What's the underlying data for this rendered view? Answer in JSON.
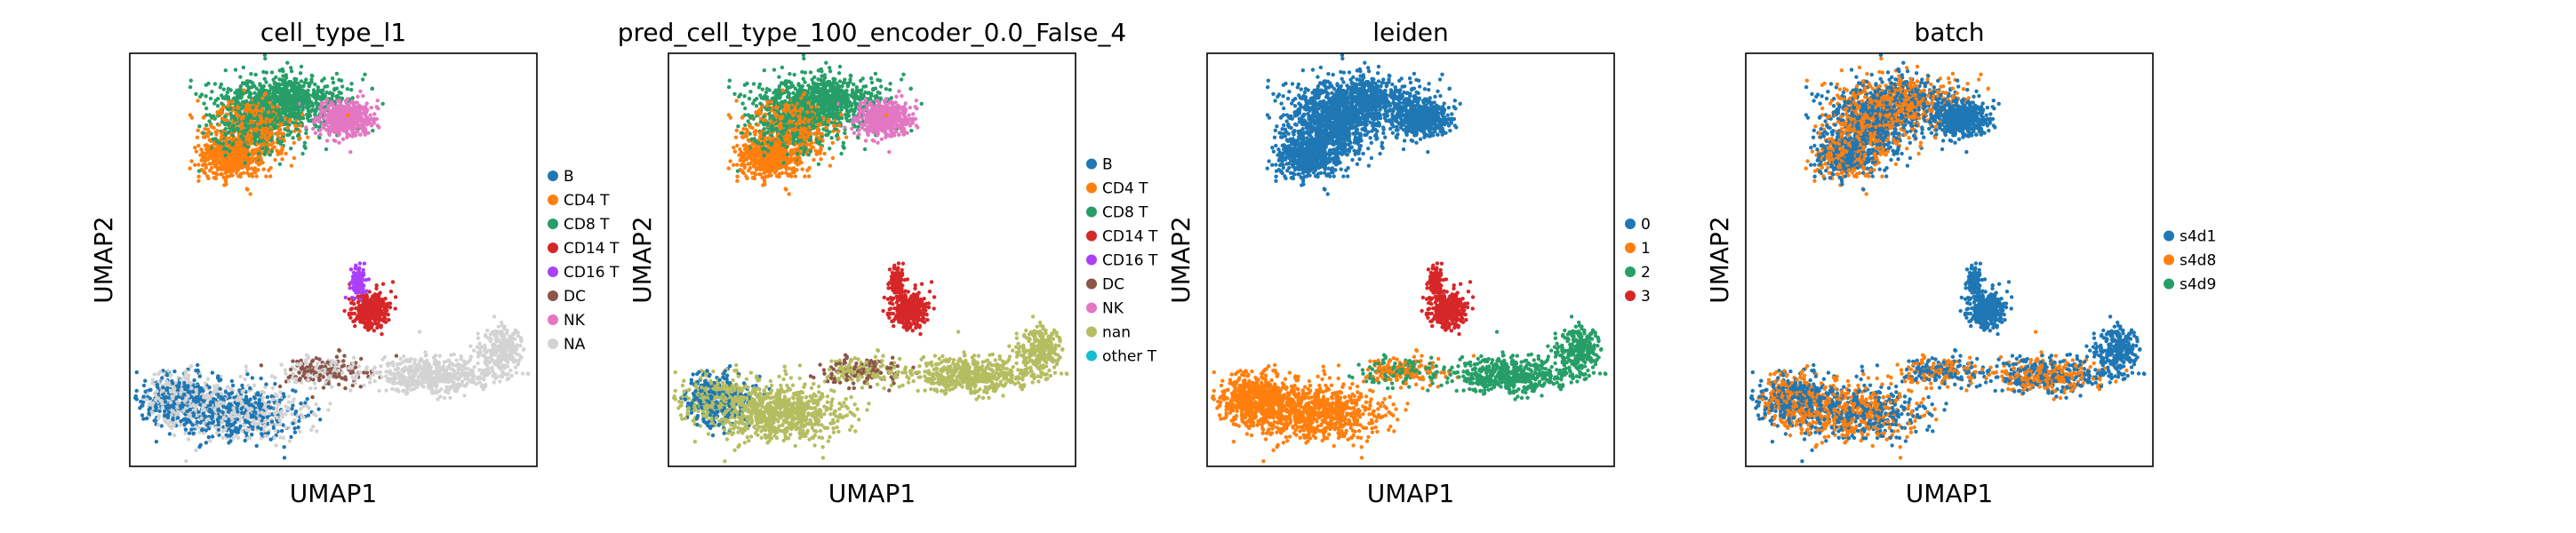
{
  "chart_data": [
    {
      "type": "scatter",
      "title": "cell_type_l1",
      "xlabel": "UMAP1",
      "ylabel": "UMAP2",
      "grid": false,
      "legend_position": "right",
      "legend": [
        {
          "label": "B",
          "color": "#1f77b4"
        },
        {
          "label": "CD4 T",
          "color": "#ff7f0e"
        },
        {
          "label": "CD8 T",
          "color": "#279e68"
        },
        {
          "label": "CD14 T",
          "color": "#d62728"
        },
        {
          "label": "CD16 T",
          "color": "#aa40fc"
        },
        {
          "label": "DC",
          "color": "#8c564b"
        },
        {
          "label": "NK",
          "color": "#e377c2"
        },
        {
          "label": "NA",
          "color": "#d3d3d3"
        }
      ]
    },
    {
      "type": "scatter",
      "title": "pred_cell_type_100_encoder_0.0_False_4",
      "xlabel": "UMAP1",
      "ylabel": "UMAP2",
      "grid": false,
      "legend_position": "right",
      "legend": [
        {
          "label": "B",
          "color": "#1f77b4"
        },
        {
          "label": "CD4 T",
          "color": "#ff7f0e"
        },
        {
          "label": "CD8 T",
          "color": "#279e68"
        },
        {
          "label": "CD14 T",
          "color": "#d62728"
        },
        {
          "label": "CD16 T",
          "color": "#aa40fc"
        },
        {
          "label": "DC",
          "color": "#8c564b"
        },
        {
          "label": "NK",
          "color": "#e377c2"
        },
        {
          "label": "nan",
          "color": "#b5bd61"
        },
        {
          "label": "other T",
          "color": "#17becf"
        }
      ]
    },
    {
      "type": "scatter",
      "title": "leiden",
      "xlabel": "UMAP1",
      "ylabel": "UMAP2",
      "grid": false,
      "legend_position": "right",
      "legend": [
        {
          "label": "0",
          "color": "#1f77b4"
        },
        {
          "label": "1",
          "color": "#ff7f0e"
        },
        {
          "label": "2",
          "color": "#279e68"
        },
        {
          "label": "3",
          "color": "#d62728"
        }
      ]
    },
    {
      "type": "scatter",
      "title": "batch",
      "xlabel": "UMAP1",
      "ylabel": "UMAP2",
      "grid": false,
      "legend_position": "right",
      "legend": [
        {
          "label": "s4d1",
          "color": "#1f77b4"
        },
        {
          "label": "s4d8",
          "color": "#ff7f0e"
        },
        {
          "label": "s4d9",
          "color": "#279e68"
        }
      ]
    }
  ]
}
